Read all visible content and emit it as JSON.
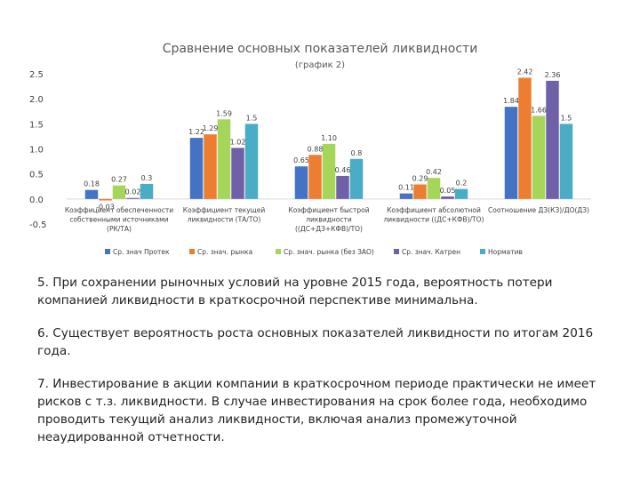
{
  "chart_data": {
    "type": "bar",
    "title": "Сравнение основных показателей ликвидности",
    "subtitle": "(график 2)",
    "ylim": [
      -0.5,
      2.5
    ],
    "yticks": [
      "-0.5",
      "0.0",
      "0.5",
      "1.0",
      "1.5",
      "2.0",
      "2.5"
    ],
    "categories": [
      [
        "Коэффициент обеспеченности",
        "собственными источниками",
        "(РК/ТА)"
      ],
      [
        "Коэффициент текущей",
        "ликвидности (ТА/ТО)"
      ],
      [
        "Коэффициент быстрой",
        "ликвидности",
        "((ДС+ДЗ+КФВ)/ТО)"
      ],
      [
        "Коэффициент абсолютной",
        "ликвидности ((ДС+КФВ)/ТО)"
      ],
      [
        "Соотношение ДЗ(КЗ)/ДО(ДЗ)"
      ]
    ],
    "series": [
      {
        "name": "Ср. знач Протек",
        "color": "#4472C4",
        "values": [
          0.18,
          1.22,
          0.65,
          0.11,
          1.84
        ],
        "labels": [
          "0.18",
          "1.22",
          "0.65",
          "0.11",
          "1.84"
        ]
      },
      {
        "name": "Ср. знач. рынка",
        "color": "#ED7D31",
        "values": [
          -0.03,
          1.29,
          0.88,
          0.29,
          2.42
        ],
        "labels": [
          "-0.03",
          "1.29",
          "0.88",
          "0.29",
          "2.42"
        ]
      },
      {
        "name": "Ср. знач. рынка (без ЗАО)",
        "color": "#A5D65A",
        "values": [
          0.27,
          1.59,
          1.1,
          0.42,
          1.66
        ],
        "labels": [
          "0.27",
          "1.59",
          "1.10",
          "0.42",
          "1.66"
        ]
      },
      {
        "name": "Ср. знач. Катрен",
        "color": "#7060A8",
        "values": [
          0.02,
          1.02,
          0.46,
          0.05,
          2.36
        ],
        "labels": [
          "0.02",
          "1.02",
          "0.46",
          "0.05",
          "2.36"
        ]
      },
      {
        "name": "Норматив",
        "color": "#4BACC6",
        "values": [
          0.3,
          1.5,
          0.8,
          0.2,
          1.5
        ],
        "labels": [
          "0.3",
          "1.5",
          "0.8",
          "0.2",
          "1.5"
        ]
      }
    ]
  },
  "notes": [
    "5. При сохранении рыночных условий на уровне 2015 года, вероятность потери компанией ликвидности в краткосрочной перспективе минимальна.",
    "6. Существует вероятность роста основных показателей ликвидности по итогам 2016 года.",
    "7. Инвестирование в акции компании в краткосрочном периоде практически не имеет рисков с т.з. ликвидности. В случае инвестирования на срок более года, необходимо проводить текущий анализ ликвидности, включая анализ промежуточной неаудированной отчетности."
  ]
}
